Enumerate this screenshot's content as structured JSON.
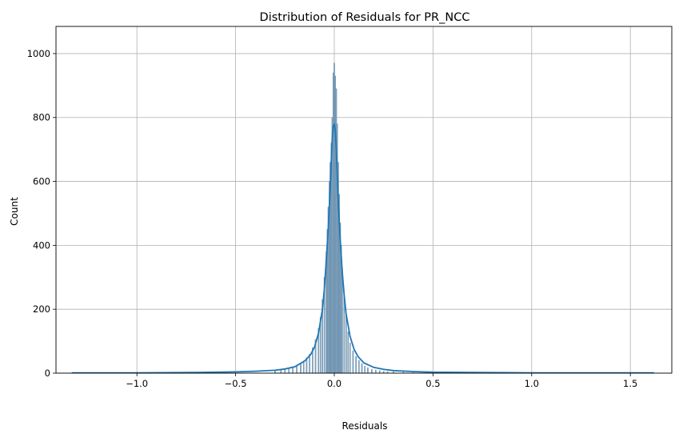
{
  "chart_data": {
    "type": "histogram",
    "title": "Distribution of Residuals for PR_NCC",
    "xlabel": "Residuals",
    "ylabel": "Count",
    "xlim": [
      -1.41,
      1.71
    ],
    "ylim": [
      0,
      1085
    ],
    "xticks": [
      -1.0,
      -0.5,
      0.0,
      0.5,
      1.0,
      1.5
    ],
    "xtick_labels": [
      "−1.0",
      "−0.5",
      "0.0",
      "0.5",
      "1.0",
      "1.5"
    ],
    "yticks": [
      0,
      200,
      400,
      600,
      800,
      1000
    ],
    "ytick_labels": [
      "0",
      "200",
      "400",
      "600",
      "800",
      "1000"
    ],
    "grid": true,
    "colors": {
      "bars": "#7fa3bf",
      "bar_edge": "#5b7f9b",
      "kde": "#1f77b4",
      "grid": "#b0b0b0"
    },
    "x_range": [
      -1.33,
      1.62
    ],
    "bin_width": 0.005,
    "bars": {
      "x": [
        -0.3,
        -0.27,
        -0.25,
        -0.23,
        -0.21,
        -0.19,
        -0.17,
        -0.155,
        -0.14,
        -0.125,
        -0.11,
        -0.095,
        -0.08,
        -0.07,
        -0.06,
        -0.05,
        -0.04,
        -0.035,
        -0.03,
        -0.025,
        -0.02,
        -0.015,
        -0.01,
        -0.005,
        0.0,
        0.005,
        0.01,
        0.015,
        0.02,
        0.025,
        0.03,
        0.035,
        0.04,
        0.05,
        0.06,
        0.07,
        0.08,
        0.095,
        0.11,
        0.125,
        0.14,
        0.155,
        0.17,
        0.19,
        0.21,
        0.23,
        0.25,
        0.27,
        0.3,
        0.35,
        0.4
      ],
      "counts": [
        8,
        10,
        12,
        14,
        18,
        22,
        30,
        38,
        48,
        60,
        80,
        105,
        140,
        175,
        230,
        300,
        380,
        450,
        520,
        600,
        660,
        720,
        800,
        940,
        970,
        930,
        890,
        780,
        660,
        560,
        470,
        400,
        330,
        240,
        180,
        130,
        95,
        70,
        52,
        40,
        30,
        22,
        17,
        12,
        10,
        8,
        6,
        5,
        4,
        3,
        2
      ]
    },
    "kde": {
      "x": [
        -1.33,
        -1.0,
        -0.7,
        -0.5,
        -0.4,
        -0.3,
        -0.25,
        -0.2,
        -0.15,
        -0.12,
        -0.1,
        -0.08,
        -0.06,
        -0.05,
        -0.04,
        -0.03,
        -0.02,
        -0.015,
        -0.01,
        -0.005,
        0.0,
        0.005,
        0.01,
        0.015,
        0.02,
        0.03,
        0.04,
        0.05,
        0.06,
        0.08,
        0.1,
        0.12,
        0.15,
        0.2,
        0.25,
        0.3,
        0.4,
        0.5,
        0.7,
        1.0,
        1.3,
        1.62
      ],
      "y": [
        1,
        1,
        2,
        4,
        6,
        9,
        13,
        20,
        38,
        58,
        82,
        125,
        200,
        265,
        360,
        460,
        590,
        670,
        740,
        775,
        778,
        760,
        700,
        620,
        540,
        420,
        320,
        245,
        185,
        115,
        75,
        52,
        32,
        18,
        12,
        8,
        5,
        3,
        2,
        1,
        1,
        1
      ]
    }
  }
}
